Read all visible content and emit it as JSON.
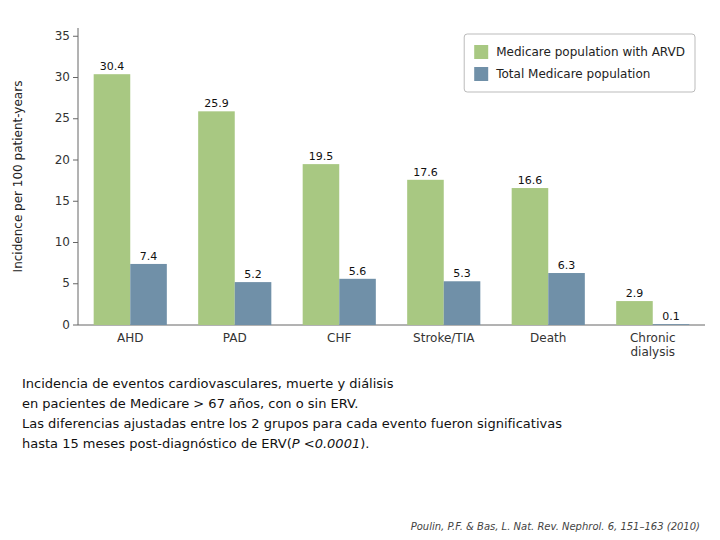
{
  "chart_data": {
    "type": "bar",
    "categories": [
      "AHD",
      "PAD",
      "CHF",
      "Stroke/TIA",
      "Death",
      "Chronic\ndialysis"
    ],
    "series": [
      {
        "name": "Medicare population with ARVD",
        "color": "#a8c882",
        "values": [
          30.4,
          25.9,
          19.5,
          17.6,
          16.6,
          2.9
        ]
      },
      {
        "name": "Total Medicare population",
        "color": "#7090a8",
        "values": [
          7.4,
          5.2,
          5.6,
          5.3,
          6.3,
          0.1
        ]
      }
    ],
    "ylabel": "Incidence per 100 patient-years",
    "ylim": [
      0,
      36
    ],
    "yticks": [
      0,
      5,
      10,
      15,
      20,
      25,
      30,
      35
    ],
    "grid": false,
    "legend": "upper right",
    "data_labels": true,
    "annotations": [
      "Incidencia de eventos cardiovasculares, muerte y diálisis",
      "en pacientes de Medicare  > 67 años, con o sin ERV.",
      "Las diferencias ajustadas entre los 2 grupos para cada evento fueron significativas",
      "hasta 15 meses post-diagnóstico de ERV(",
      "P <0.0001",
      ").",
      "Poulin, P.F. & Bas, L. Nat. Rev. Nephrol. 6, 151–163 (2010)"
    ]
  }
}
